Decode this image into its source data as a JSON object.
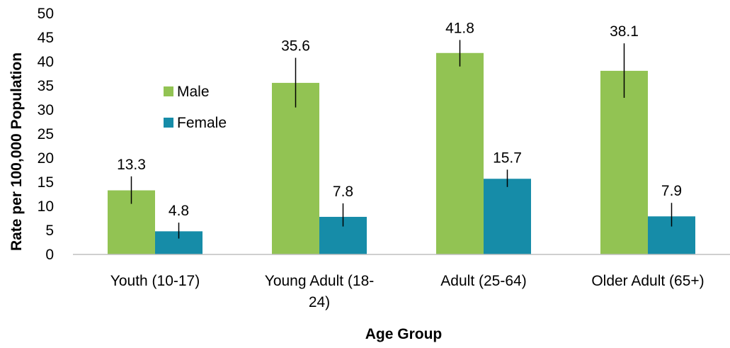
{
  "chart_data": {
    "type": "bar",
    "title": "",
    "xlabel": "Age Group",
    "ylabel": "Rate per 100,000 Population",
    "ylim": [
      0,
      50
    ],
    "yticks": [
      "0",
      "5",
      "10",
      "15",
      "20",
      "25",
      "30",
      "35",
      "40",
      "45",
      "50"
    ],
    "grid": false,
    "legend_position": "inside-left",
    "categories": [
      [
        "Youth (10-17)"
      ],
      [
        "Young Adult (18-",
        "24)"
      ],
      [
        "Adult (25-64)"
      ],
      [
        "Older Adult (65+)"
      ]
    ],
    "series": [
      {
        "name": "Male",
        "color": "#92c353",
        "values": [
          13.3,
          35.6,
          41.8,
          38.1
        ],
        "labels": [
          "13.3",
          "35.6",
          "41.8",
          "38.1"
        ],
        "error_low": [
          10.5,
          30.5,
          39.0,
          32.5
        ],
        "error_high": [
          16.2,
          40.8,
          44.5,
          43.8
        ]
      },
      {
        "name": "Female",
        "color": "#168ca8",
        "values": [
          4.8,
          7.8,
          15.7,
          7.9
        ],
        "labels": [
          "4.8",
          "7.8",
          "15.7",
          "7.9"
        ],
        "error_low": [
          3.3,
          5.8,
          14.0,
          5.8
        ],
        "error_high": [
          6.6,
          10.6,
          17.6,
          10.7
        ]
      }
    ]
  }
}
